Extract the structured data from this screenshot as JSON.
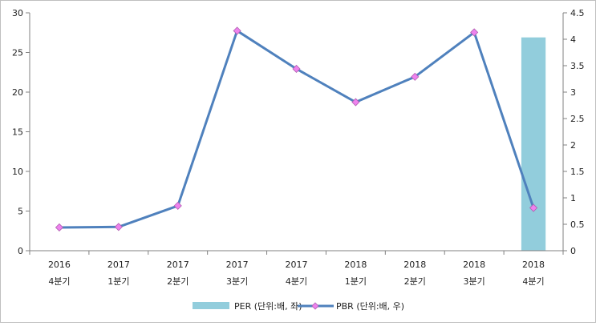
{
  "chart_data": {
    "type": "bar+line",
    "categories": [
      [
        "2016",
        "4분기"
      ],
      [
        "2017",
        "1분기"
      ],
      [
        "2017",
        "2분기"
      ],
      [
        "2017",
        "3분기"
      ],
      [
        "2017",
        "4분기"
      ],
      [
        "2018",
        "1분기"
      ],
      [
        "2018",
        "2분기"
      ],
      [
        "2018",
        "3분기"
      ],
      [
        "2018",
        "4분기"
      ]
    ],
    "series": [
      {
        "name": "PER (단위:배, 좌)",
        "type": "bar",
        "axis": "left",
        "color": "#92cddc",
        "values": [
          null,
          null,
          null,
          null,
          null,
          null,
          null,
          null,
          26.9
        ]
      },
      {
        "name": "PBR (단위:배, 우)",
        "type": "line",
        "axis": "right",
        "color": "#4f81bd",
        "marker_color": "#ee82ee",
        "values": [
          0.44,
          0.45,
          0.85,
          4.16,
          3.44,
          2.81,
          3.29,
          4.13,
          0.81
        ]
      }
    ],
    "y_left": {
      "range": [
        0,
        30
      ],
      "ticks": [
        0,
        5,
        10,
        15,
        20,
        25,
        30
      ]
    },
    "y_right": {
      "range": [
        0,
        4.5
      ],
      "ticks": [
        0,
        0.5,
        1,
        1.5,
        2,
        2.5,
        3,
        3.5,
        4,
        4.5
      ]
    },
    "grid": false,
    "legend": "bottom"
  }
}
